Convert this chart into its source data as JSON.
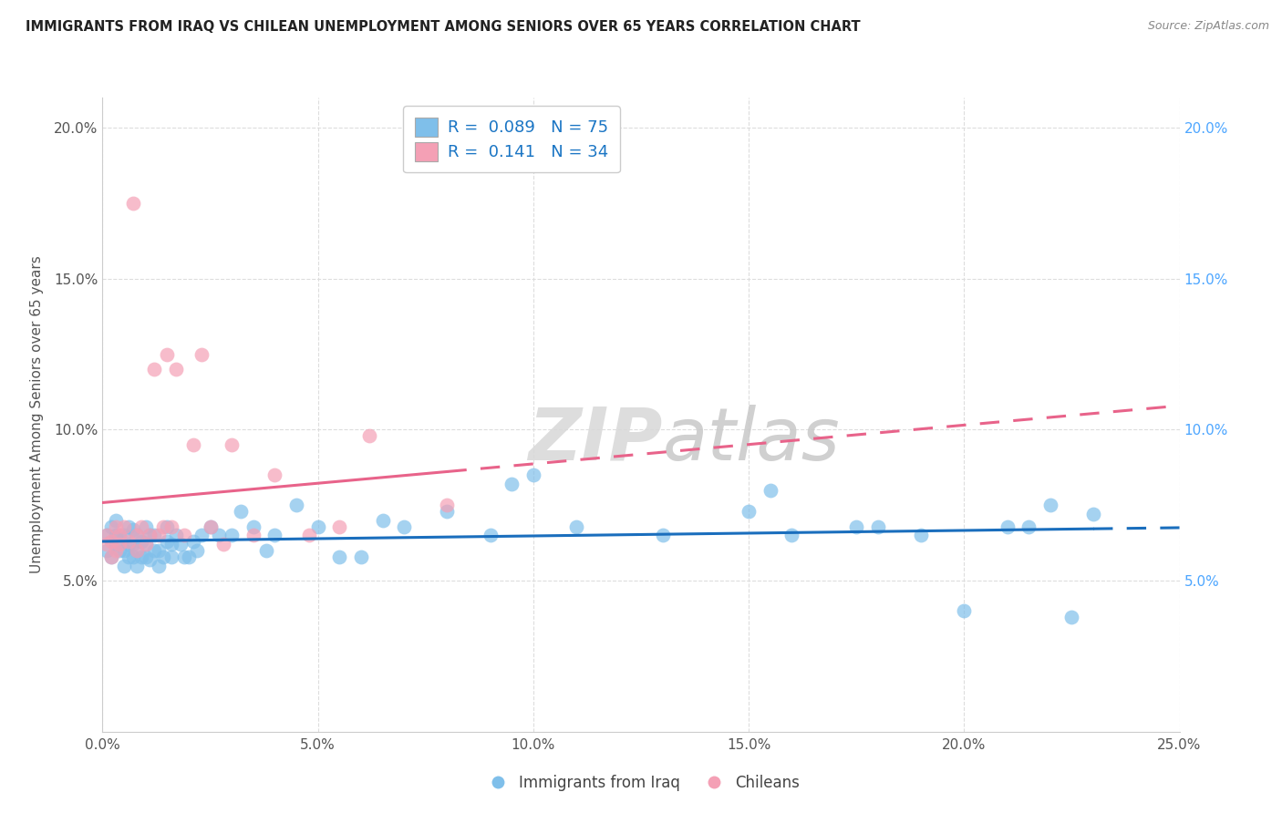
{
  "title": "IMMIGRANTS FROM IRAQ VS CHILEAN UNEMPLOYMENT AMONG SENIORS OVER 65 YEARS CORRELATION CHART",
  "source": "Source: ZipAtlas.com",
  "ylabel": "Unemployment Among Seniors over 65 years",
  "legend_label1": "Immigrants from Iraq",
  "legend_label2": "Chileans",
  "r1": 0.089,
  "n1": 75,
  "r2": 0.141,
  "n2": 34,
  "xlim": [
    0.0,
    0.25
  ],
  "ylim": [
    0.0,
    0.21
  ],
  "xticks": [
    0.0,
    0.05,
    0.1,
    0.15,
    0.2,
    0.25
  ],
  "yticks": [
    0.05,
    0.1,
    0.15,
    0.2
  ],
  "color_blue": "#7fbfea",
  "color_pink": "#f4a0b5",
  "line_blue": "#1a6ebd",
  "line_pink": "#e8638a",
  "watermark_zip": "ZIP",
  "watermark_atlas": "atlas",
  "blue_x": [
    0.001,
    0.001,
    0.002,
    0.002,
    0.003,
    0.003,
    0.003,
    0.004,
    0.004,
    0.005,
    0.005,
    0.005,
    0.006,
    0.006,
    0.006,
    0.007,
    0.007,
    0.007,
    0.008,
    0.008,
    0.008,
    0.009,
    0.009,
    0.01,
    0.01,
    0.01,
    0.011,
    0.011,
    0.012,
    0.012,
    0.013,
    0.013,
    0.014,
    0.015,
    0.015,
    0.016,
    0.016,
    0.017,
    0.018,
    0.019,
    0.02,
    0.021,
    0.022,
    0.023,
    0.025,
    0.027,
    0.03,
    0.032,
    0.035,
    0.038,
    0.04,
    0.045,
    0.05,
    0.055,
    0.06,
    0.065,
    0.07,
    0.08,
    0.09,
    0.095,
    0.1,
    0.11,
    0.13,
    0.15,
    0.155,
    0.16,
    0.175,
    0.18,
    0.19,
    0.2,
    0.21,
    0.215,
    0.22,
    0.225,
    0.23
  ],
  "blue_y": [
    0.065,
    0.06,
    0.058,
    0.068,
    0.062,
    0.065,
    0.07,
    0.06,
    0.065,
    0.055,
    0.06,
    0.065,
    0.058,
    0.062,
    0.068,
    0.058,
    0.062,
    0.067,
    0.06,
    0.055,
    0.065,
    0.058,
    0.063,
    0.058,
    0.062,
    0.068,
    0.057,
    0.065,
    0.06,
    0.065,
    0.06,
    0.055,
    0.058,
    0.063,
    0.068,
    0.058,
    0.062,
    0.065,
    0.062,
    0.058,
    0.058,
    0.063,
    0.06,
    0.065,
    0.068,
    0.065,
    0.065,
    0.073,
    0.068,
    0.06,
    0.065,
    0.075,
    0.068,
    0.058,
    0.058,
    0.07,
    0.068,
    0.073,
    0.065,
    0.082,
    0.085,
    0.068,
    0.065,
    0.073,
    0.08,
    0.065,
    0.068,
    0.068,
    0.065,
    0.04,
    0.068,
    0.068,
    0.075,
    0.038,
    0.072
  ],
  "pink_x": [
    0.001,
    0.001,
    0.002,
    0.002,
    0.003,
    0.003,
    0.004,
    0.004,
    0.005,
    0.006,
    0.007,
    0.008,
    0.008,
    0.009,
    0.01,
    0.011,
    0.012,
    0.013,
    0.014,
    0.015,
    0.016,
    0.017,
    0.019,
    0.021,
    0.023,
    0.025,
    0.028,
    0.03,
    0.035,
    0.04,
    0.048,
    0.055,
    0.062,
    0.08
  ],
  "pink_y": [
    0.065,
    0.062,
    0.063,
    0.058,
    0.06,
    0.068,
    0.062,
    0.065,
    0.068,
    0.063,
    0.175,
    0.065,
    0.06,
    0.068,
    0.062,
    0.065,
    0.12,
    0.065,
    0.068,
    0.125,
    0.068,
    0.12,
    0.065,
    0.095,
    0.125,
    0.068,
    0.062,
    0.095,
    0.065,
    0.085,
    0.065,
    0.068,
    0.098,
    0.075
  ]
}
